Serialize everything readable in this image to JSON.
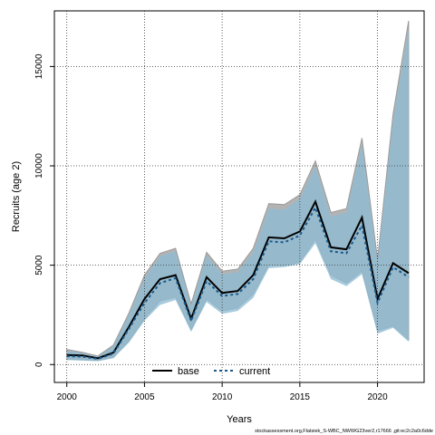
{
  "chart_data": {
    "type": "area",
    "xlabel": "Years",
    "ylabel": "Recruits (age 2)",
    "xlim": [
      1999.2,
      2023
    ],
    "ylim": [
      -900,
      17800
    ],
    "x_ticks": [
      2000,
      2005,
      2010,
      2015,
      2020
    ],
    "y_ticks": [
      0,
      5000,
      10000,
      15000
    ],
    "x_tick_labels": [
      "2000",
      "2005",
      "2010",
      "2015",
      "2020"
    ],
    "y_tick_labels": [
      "0",
      "5000",
      "10000",
      "15000"
    ],
    "grid": true,
    "legend_position": "bottom",
    "x": [
      2000,
      2001,
      2002,
      2003,
      2004,
      2005,
      2006,
      2007,
      2008,
      2009,
      2010,
      2011,
      2012,
      2013,
      2014,
      2015,
      2016,
      2017,
      2018,
      2019,
      2020,
      2021,
      2022
    ],
    "series": [
      {
        "name": "base",
        "color": "#000000",
        "line_style": "solid",
        "values": [
          480,
          460,
          320,
          600,
          1900,
          3300,
          4300,
          4500,
          2300,
          4400,
          3600,
          3700,
          4500,
          6400,
          6350,
          6700,
          8200,
          5900,
          5800,
          7400,
          3300,
          5100,
          4600
        ],
        "lower": [
          270,
          240,
          200,
          350,
          1200,
          2300,
          3200,
          3400,
          1750,
          3300,
          2700,
          2850,
          3550,
          5000,
          5000,
          5150,
          6300,
          4500,
          4100,
          4700,
          1700,
          1950,
          1250
        ],
        "upper": [
          760,
          620,
          430,
          980,
          2600,
          4500,
          5600,
          5850,
          3050,
          5650,
          4700,
          4800,
          5850,
          8100,
          8050,
          8550,
          10250,
          7650,
          7850,
          11400,
          5300,
          12600,
          17300
        ]
      },
      {
        "name": "current",
        "color": "#1b5a8c",
        "line_style": "dashed",
        "values": [
          420,
          400,
          280,
          550,
          1800,
          3100,
          4100,
          4350,
          2200,
          4200,
          3450,
          3550,
          4300,
          6200,
          6150,
          6500,
          7900,
          5700,
          5600,
          7000,
          3100,
          4900,
          4400
        ],
        "lower": [
          220,
          200,
          170,
          320,
          1100,
          2200,
          3000,
          3250,
          1650,
          3150,
          2550,
          2700,
          3350,
          4850,
          4900,
          5050,
          6100,
          4300,
          3950,
          4550,
          1550,
          1850,
          1150
        ],
        "upper": [
          700,
          580,
          400,
          930,
          2500,
          4350,
          5450,
          5700,
          2950,
          5500,
          4550,
          4650,
          5650,
          7850,
          7800,
          8350,
          10000,
          7450,
          7650,
          11100,
          5150,
          12300,
          16900
        ]
      }
    ]
  },
  "footer": {
    "text": "stockassessment.org,Flatsiek_S-WBC_NWWG23ver2,r17666 ,git:ec2c2a0c6dde"
  }
}
